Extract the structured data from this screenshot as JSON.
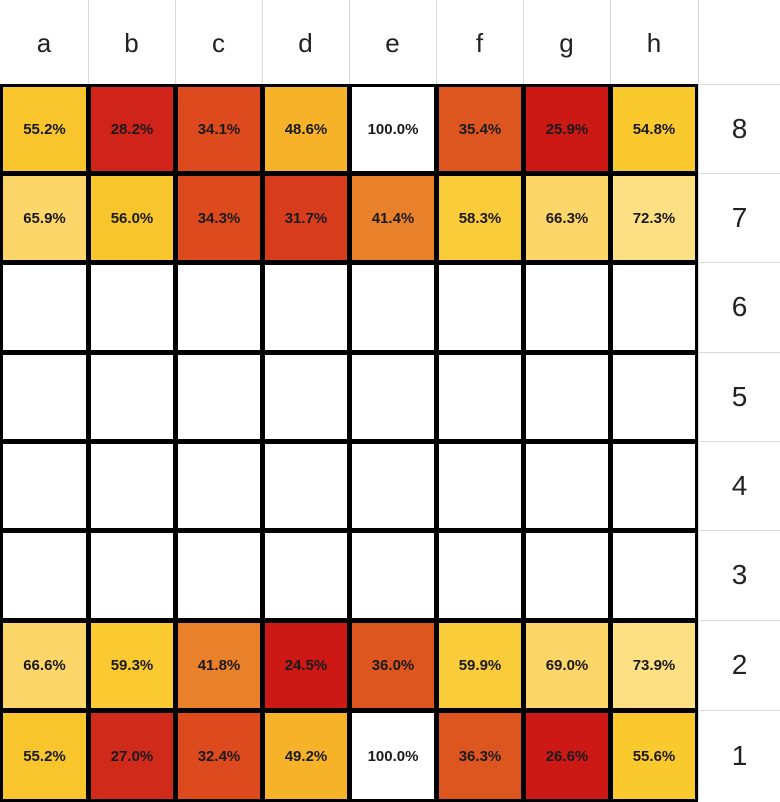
{
  "chart_data": {
    "type": "heatmap",
    "columns": [
      "a",
      "b",
      "c",
      "d",
      "e",
      "f",
      "g",
      "h"
    ],
    "rows": [
      "8",
      "7",
      "6",
      "5",
      "4",
      "3",
      "2",
      "1"
    ],
    "values": [
      [
        55.2,
        28.2,
        34.1,
        48.6,
        100.0,
        35.4,
        25.9,
        54.8
      ],
      [
        65.9,
        56.0,
        34.3,
        31.7,
        41.4,
        58.3,
        66.3,
        72.3
      ],
      [
        null,
        null,
        null,
        null,
        null,
        null,
        null,
        null
      ],
      [
        null,
        null,
        null,
        null,
        null,
        null,
        null,
        null
      ],
      [
        null,
        null,
        null,
        null,
        null,
        null,
        null,
        null
      ],
      [
        null,
        null,
        null,
        null,
        null,
        null,
        null,
        null
      ],
      [
        66.6,
        59.3,
        41.8,
        24.5,
        36.0,
        59.9,
        69.0,
        73.9
      ],
      [
        55.2,
        27.0,
        32.4,
        49.2,
        100.0,
        36.3,
        26.6,
        55.6
      ]
    ],
    "labels": [
      [
        "55.2%",
        "28.2%",
        "34.1%",
        "48.6%",
        "100.0%",
        "35.4%",
        "25.9%",
        "54.8%"
      ],
      [
        "65.9%",
        "56.0%",
        "34.3%",
        "31.7%",
        "41.4%",
        "58.3%",
        "66.3%",
        "72.3%"
      ],
      [
        "",
        "",
        "",
        "",
        "",
        "",
        "",
        ""
      ],
      [
        "",
        "",
        "",
        "",
        "",
        "",
        "",
        ""
      ],
      [
        "",
        "",
        "",
        "",
        "",
        "",
        "",
        ""
      ],
      [
        "",
        "",
        "",
        "",
        "",
        "",
        "",
        ""
      ],
      [
        "66.6%",
        "59.3%",
        "41.8%",
        "24.5%",
        "36.0%",
        "59.9%",
        "69.0%",
        "73.9%"
      ],
      [
        "55.2%",
        "27.0%",
        "32.4%",
        "49.2%",
        "100.0%",
        "36.3%",
        "26.6%",
        "55.6%"
      ]
    ],
    "colors": [
      [
        "#f9c52c",
        "#d0231a",
        "#dc4a1e",
        "#f6b32a",
        "#ffffff",
        "#de561f",
        "#cc1916",
        "#fac92e"
      ],
      [
        "#fdd669",
        "#f9c52c",
        "#dc4a1e",
        "#d73d1c",
        "#e8812a",
        "#fbcc3a",
        "#fdd669",
        "#fde084"
      ],
      [
        "#ffffff",
        "#ffffff",
        "#ffffff",
        "#ffffff",
        "#ffffff",
        "#ffffff",
        "#ffffff",
        "#ffffff"
      ],
      [
        "#ffffff",
        "#ffffff",
        "#ffffff",
        "#ffffff",
        "#ffffff",
        "#ffffff",
        "#ffffff",
        "#ffffff"
      ],
      [
        "#ffffff",
        "#ffffff",
        "#ffffff",
        "#ffffff",
        "#ffffff",
        "#ffffff",
        "#ffffff",
        "#ffffff"
      ],
      [
        "#ffffff",
        "#ffffff",
        "#ffffff",
        "#ffffff",
        "#ffffff",
        "#ffffff",
        "#ffffff",
        "#ffffff"
      ],
      [
        "#fdd669",
        "#fbc930",
        "#e8812a",
        "#cc1916",
        "#de561f",
        "#fbcc3a",
        "#fdd669",
        "#fde084"
      ],
      [
        "#f9c52c",
        "#d02a1a",
        "#dc4a1e",
        "#f6b32a",
        "#ffffff",
        "#de561f",
        "#cc1916",
        "#fac92e"
      ]
    ],
    "title": "",
    "xlabel": "",
    "ylabel": ""
  }
}
